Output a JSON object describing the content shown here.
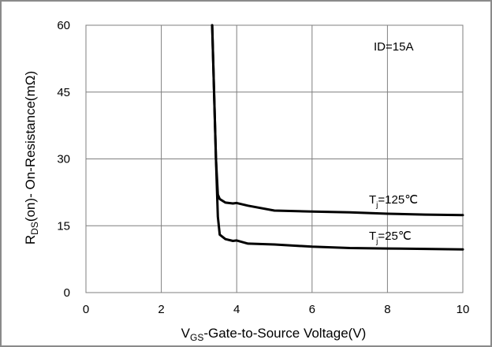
{
  "chart_data": {
    "type": "line",
    "annotation": "ID=15A",
    "xlabel": {
      "main": "V",
      "sub": "GS",
      "rest": "-Gate-to-Source  Voltage(V)"
    },
    "ylabel": {
      "main": "R",
      "sub": "DS",
      "rest": "(on)- On-Resistance(mΩ)"
    },
    "xlim": [
      0,
      10
    ],
    "ylim": [
      0,
      60
    ],
    "x_ticks": [
      "0",
      "2",
      "4",
      "6",
      "8",
      "10"
    ],
    "y_ticks": [
      "0",
      "15",
      "30",
      "45",
      "60"
    ],
    "grid": true,
    "series": [
      {
        "name": "Tj=125℃",
        "label_main": "T",
        "label_sub": "j",
        "label_rest": "=125℃",
        "color": "#000000",
        "x": [
          3.35,
          3.4,
          3.45,
          3.5,
          3.55,
          3.7,
          3.9,
          4.0,
          4.3,
          5.0,
          6.0,
          7.0,
          8.0,
          9.0,
          10.0
        ],
        "y": [
          60,
          45,
          30,
          22,
          21,
          20.2,
          20.0,
          20.1,
          19.5,
          18.4,
          18.2,
          18.0,
          17.7,
          17.5,
          17.4
        ]
      },
      {
        "name": "Tj=25℃",
        "label_main": "T",
        "label_sub": "j",
        "label_rest": "=25℃",
        "color": "#000000",
        "x": [
          3.35,
          3.4,
          3.45,
          3.5,
          3.55,
          3.7,
          3.9,
          4.0,
          4.3,
          5.0,
          6.0,
          7.0,
          8.0,
          9.0,
          10.0
        ],
        "y": [
          60,
          45,
          30,
          17,
          13,
          12.0,
          11.6,
          11.7,
          11.0,
          10.8,
          10.3,
          10.0,
          9.9,
          9.8,
          9.7
        ]
      }
    ]
  }
}
